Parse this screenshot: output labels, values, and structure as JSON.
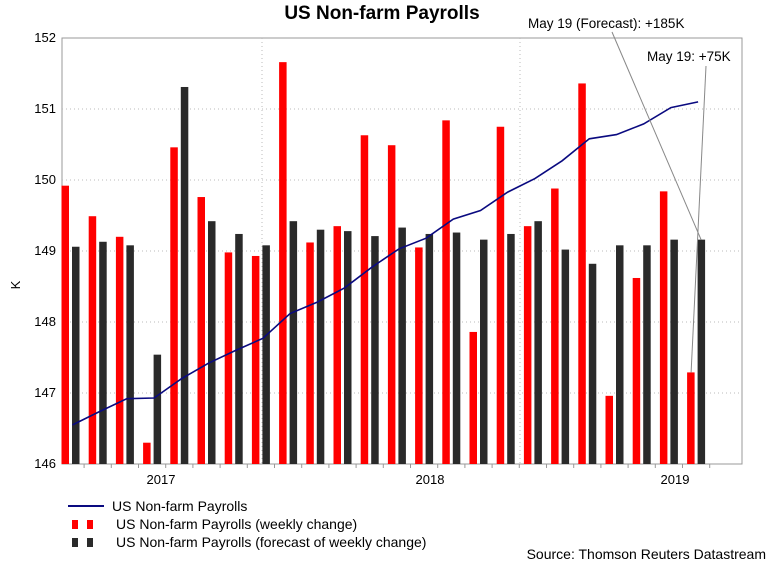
{
  "chart_data": {
    "type": "bar",
    "title": "US Non-farm Payrolls",
    "ylabel": "K",
    "ylim": [
      146,
      152
    ],
    "yticks": [
      146,
      147,
      148,
      149,
      150,
      151,
      152
    ],
    "xticks": [
      "2017",
      "2018",
      "2019"
    ],
    "grid": true,
    "legend_position": "bottom-left",
    "series": [
      {
        "name": "US Non-farm Payrolls (weekly change)",
        "kind": "bar",
        "color": "#ff0000",
        "values": [
          149.92,
          149.49,
          149.2,
          146.3,
          150.46,
          149.76,
          148.98,
          148.93,
          151.66,
          149.12,
          149.35,
          150.63,
          150.49,
          149.05,
          150.84,
          147.86,
          150.75,
          149.35,
          149.88,
          151.36,
          146.96,
          148.62,
          149.84,
          147.29
        ]
      },
      {
        "name": "US Non-farm Payrolls (forecast of weekly change)",
        "kind": "bar",
        "color": "#2a2a2a",
        "values": [
          149.06,
          149.13,
          149.08,
          147.54,
          151.31,
          149.42,
          149.24,
          149.08,
          149.42,
          149.3,
          149.28,
          149.21,
          149.33,
          149.24,
          149.26,
          149.16,
          149.24,
          149.42,
          149.02,
          148.82,
          149.08,
          149.08,
          149.16,
          149.16
        ]
      },
      {
        "name": "US Non-farm Payrolls",
        "kind": "line",
        "color": "#0a0a80",
        "values": [
          146.55,
          146.74,
          146.92,
          146.93,
          147.2,
          147.42,
          147.6,
          147.77,
          148.12,
          148.28,
          148.48,
          148.77,
          149.03,
          149.18,
          149.45,
          149.57,
          149.83,
          150.02,
          150.27,
          150.58,
          150.64,
          150.79,
          151.02,
          151.1
        ]
      }
    ],
    "annotations": [
      "May 19 (Forecast): +185K",
      "May 19: +75K"
    ]
  },
  "legend": {
    "line_label": "US Non-farm Payrolls",
    "bar1_label": "US Non-farm Payrolls (weekly change)",
    "bar2_label": "US Non-farm Payrolls (forecast of weekly change)"
  },
  "source": "Source: Thomson Reuters Datastream"
}
